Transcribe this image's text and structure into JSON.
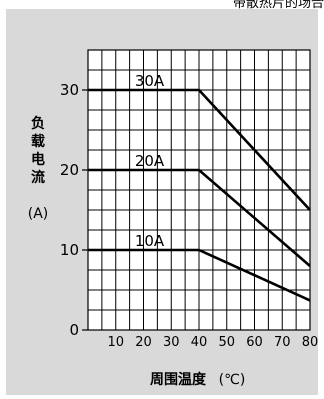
{
  "header": {
    "caption_fragment": "带散热片的场合"
  },
  "chart_data": {
    "type": "line",
    "title": "",
    "xlabel": "周围温度",
    "xlabel_unit": "(℃)",
    "ylabel": [
      "负",
      "载",
      "电",
      "流"
    ],
    "ylabel_unit": "(A)",
    "xlim": [
      0,
      80
    ],
    "ylim": [
      0,
      35
    ],
    "x_ticks": [
      10,
      20,
      30,
      40,
      50,
      60,
      70,
      80
    ],
    "y_ticks": [
      0,
      10,
      20,
      30
    ],
    "grid": true,
    "series": [
      {
        "name": "30A",
        "x": [
          0,
          40,
          80
        ],
        "y": [
          30,
          30,
          15
        ]
      },
      {
        "name": "20A",
        "x": [
          0,
          40,
          80
        ],
        "y": [
          20,
          20,
          8
        ]
      },
      {
        "name": "10A",
        "x": [
          0,
          40,
          80
        ],
        "y": [
          10,
          10,
          3.7
        ]
      }
    ],
    "colors": {
      "background": "#d9d9d9",
      "plot_area": "#ffffff",
      "grid": "#000000",
      "line": "#000000"
    }
  }
}
